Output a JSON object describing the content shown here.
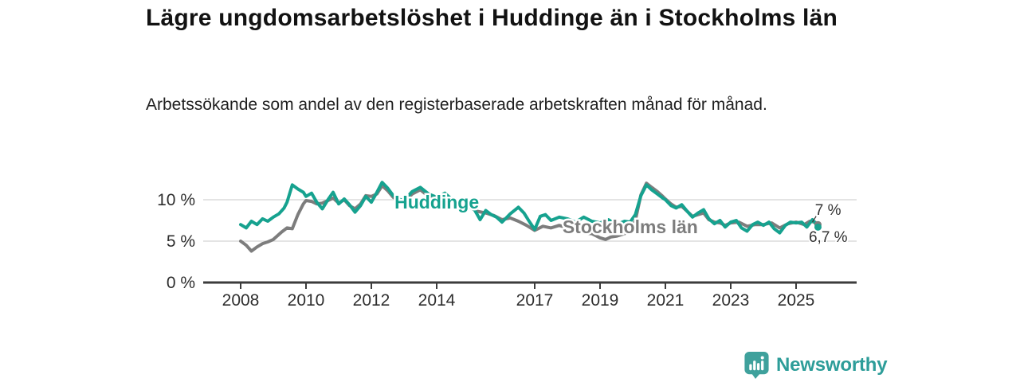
{
  "header": {
    "title": "Lägre ungdomsarbetslöshet i Huddinge än i Stockholms län",
    "subtitle": "Arbetssökande som andel av den registerbaserade arbetskraften månad för månad."
  },
  "chart_data": {
    "type": "line",
    "unit": "%",
    "x_range": [
      2008,
      2025.9
    ],
    "y_range": [
      0,
      13.5
    ],
    "grid": "horizontal",
    "legend_position": "inline-labels",
    "x_ticks": [
      2008,
      2010,
      2012,
      2014,
      2017,
      2019,
      2021,
      2023,
      2025
    ],
    "y_ticks": [
      {
        "value": 0,
        "label": "0 %"
      },
      {
        "value": 5,
        "label": "5 %"
      },
      {
        "value": 10,
        "label": "10 %"
      }
    ],
    "colors": {
      "huddinge": "#16a28f",
      "stockholm": "#7d7d7d",
      "axis": "#3c3c3c",
      "grid": "#dcdcdc",
      "tick_text": "#2e2e2e",
      "annotation_text": "#333333"
    },
    "series": [
      {
        "name": "Stockholms län",
        "color": "#7d7d7d",
        "label": {
          "text": "Stockholms län",
          "t": 2017.85,
          "v": 5.96
        },
        "end_label": "7 %",
        "end_value": 7.0,
        "points": [
          [
            2008.0,
            5.0
          ],
          [
            2008.17,
            4.5
          ],
          [
            2008.33,
            3.8
          ],
          [
            2008.5,
            4.3
          ],
          [
            2008.67,
            4.7
          ],
          [
            2008.83,
            4.9
          ],
          [
            2009.0,
            5.2
          ],
          [
            2009.25,
            6.1
          ],
          [
            2009.42,
            6.6
          ],
          [
            2009.58,
            6.5
          ],
          [
            2009.75,
            8.2
          ],
          [
            2009.92,
            9.5
          ],
          [
            2010.0,
            9.9
          ],
          [
            2010.17,
            9.8
          ],
          [
            2010.33,
            9.5
          ],
          [
            2010.5,
            9.6
          ],
          [
            2010.67,
            9.9
          ],
          [
            2010.83,
            10.2
          ],
          [
            2011.0,
            9.6
          ],
          [
            2011.17,
            10.0
          ],
          [
            2011.33,
            9.3
          ],
          [
            2011.5,
            8.9
          ],
          [
            2011.67,
            9.5
          ],
          [
            2011.83,
            10.5
          ],
          [
            2012.0,
            10.4
          ],
          [
            2012.17,
            10.7
          ],
          [
            2012.33,
            11.7
          ],
          [
            2012.5,
            11.1
          ],
          [
            2012.67,
            10.3
          ],
          [
            2012.83,
            9.9
          ],
          [
            2013.0,
            9.7
          ],
          [
            2013.25,
            10.7
          ],
          [
            2013.5,
            11.2
          ],
          [
            2013.75,
            10.4
          ],
          [
            2014.0,
            10.0
          ],
          [
            2014.25,
            10.4
          ],
          [
            2014.5,
            9.6
          ],
          [
            2014.75,
            9.0
          ],
          [
            2015.0,
            9.1
          ],
          [
            2015.25,
            8.6
          ],
          [
            2015.5,
            8.4
          ],
          [
            2015.75,
            8.1
          ],
          [
            2016.0,
            7.6
          ],
          [
            2016.25,
            7.8
          ],
          [
            2016.5,
            7.4
          ],
          [
            2016.75,
            6.9
          ],
          [
            2017.0,
            6.3
          ],
          [
            2017.25,
            6.8
          ],
          [
            2017.5,
            6.6
          ],
          [
            2017.75,
            6.9
          ],
          [
            2018.0,
            6.6
          ],
          [
            2018.25,
            6.3
          ],
          [
            2018.5,
            6.0
          ],
          [
            2018.75,
            5.9
          ],
          [
            2019.0,
            5.4
          ],
          [
            2019.17,
            5.2
          ],
          [
            2019.33,
            5.5
          ],
          [
            2019.5,
            5.6
          ],
          [
            2019.75,
            5.9
          ],
          [
            2019.92,
            6.2
          ],
          [
            2020.08,
            7.5
          ],
          [
            2020.25,
            10.6
          ],
          [
            2020.42,
            12.0
          ],
          [
            2020.58,
            11.5
          ],
          [
            2020.75,
            11.0
          ],
          [
            2020.92,
            10.4
          ],
          [
            2021.0,
            10.1
          ],
          [
            2021.17,
            9.5
          ],
          [
            2021.33,
            9.1
          ],
          [
            2021.5,
            9.2
          ],
          [
            2021.67,
            8.6
          ],
          [
            2021.83,
            8.0
          ],
          [
            2022.0,
            8.2
          ],
          [
            2022.17,
            8.4
          ],
          [
            2022.33,
            7.6
          ],
          [
            2022.5,
            7.3
          ],
          [
            2022.67,
            7.2
          ],
          [
            2022.83,
            6.9
          ],
          [
            2023.0,
            7.2
          ],
          [
            2023.25,
            7.3
          ],
          [
            2023.5,
            6.8
          ],
          [
            2023.75,
            7.0
          ],
          [
            2024.0,
            7.0
          ],
          [
            2024.25,
            7.2
          ],
          [
            2024.5,
            6.6
          ],
          [
            2024.75,
            7.1
          ],
          [
            2025.0,
            7.3
          ],
          [
            2025.25,
            7.0
          ],
          [
            2025.42,
            7.4
          ],
          [
            2025.58,
            7.3
          ],
          [
            2025.67,
            7.0
          ]
        ]
      },
      {
        "name": "Huddinge",
        "color": "#16a28f",
        "label": {
          "text": "Huddinge",
          "t": 2012.71,
          "v": 8.94
        },
        "end_label": "6,7 %",
        "end_value": 6.7,
        "points": [
          [
            2008.0,
            7.0
          ],
          [
            2008.17,
            6.6
          ],
          [
            2008.33,
            7.4
          ],
          [
            2008.5,
            7.0
          ],
          [
            2008.67,
            7.7
          ],
          [
            2008.83,
            7.4
          ],
          [
            2009.0,
            7.9
          ],
          [
            2009.17,
            8.3
          ],
          [
            2009.33,
            9.0
          ],
          [
            2009.42,
            9.7
          ],
          [
            2009.58,
            11.8
          ],
          [
            2009.75,
            11.3
          ],
          [
            2009.92,
            10.9
          ],
          [
            2010.0,
            10.4
          ],
          [
            2010.17,
            10.8
          ],
          [
            2010.33,
            9.7
          ],
          [
            2010.5,
            8.9
          ],
          [
            2010.67,
            10.0
          ],
          [
            2010.83,
            10.9
          ],
          [
            2011.0,
            9.5
          ],
          [
            2011.17,
            10.1
          ],
          [
            2011.33,
            9.4
          ],
          [
            2011.5,
            8.5
          ],
          [
            2011.67,
            9.3
          ],
          [
            2011.83,
            10.4
          ],
          [
            2012.0,
            9.7
          ],
          [
            2012.17,
            10.9
          ],
          [
            2012.33,
            12.1
          ],
          [
            2012.5,
            11.4
          ],
          [
            2012.67,
            10.5
          ],
          [
            2012.83,
            10.1
          ],
          [
            2013.0,
            9.9
          ],
          [
            2013.25,
            11.0
          ],
          [
            2013.5,
            11.5
          ],
          [
            2013.75,
            10.7
          ],
          [
            2014.0,
            10.3
          ],
          [
            2014.25,
            10.8
          ],
          [
            2014.5,
            9.9
          ],
          [
            2014.75,
            9.3
          ],
          [
            2015.0,
            9.4
          ],
          [
            2015.17,
            8.7
          ],
          [
            2015.33,
            7.6
          ],
          [
            2015.5,
            8.7
          ],
          [
            2015.67,
            8.2
          ],
          [
            2015.83,
            7.9
          ],
          [
            2016.0,
            7.3
          ],
          [
            2016.25,
            8.3
          ],
          [
            2016.5,
            9.1
          ],
          [
            2016.67,
            8.4
          ],
          [
            2016.83,
            7.4
          ],
          [
            2017.0,
            6.4
          ],
          [
            2017.17,
            8.0
          ],
          [
            2017.33,
            8.2
          ],
          [
            2017.5,
            7.5
          ],
          [
            2017.75,
            7.9
          ],
          [
            2018.0,
            7.7
          ],
          [
            2018.25,
            7.3
          ],
          [
            2018.5,
            7.9
          ],
          [
            2018.75,
            7.4
          ],
          [
            2019.0,
            7.2
          ],
          [
            2019.25,
            7.6
          ],
          [
            2019.5,
            7.0
          ],
          [
            2019.75,
            7.4
          ],
          [
            2019.92,
            7.3
          ],
          [
            2020.08,
            8.2
          ],
          [
            2020.25,
            10.5
          ],
          [
            2020.42,
            11.8
          ],
          [
            2020.58,
            11.2
          ],
          [
            2020.75,
            10.7
          ],
          [
            2020.92,
            10.2
          ],
          [
            2021.0,
            10.0
          ],
          [
            2021.17,
            9.3
          ],
          [
            2021.33,
            9.0
          ],
          [
            2021.5,
            9.4
          ],
          [
            2021.67,
            8.6
          ],
          [
            2021.83,
            7.9
          ],
          [
            2022.0,
            8.4
          ],
          [
            2022.17,
            8.8
          ],
          [
            2022.33,
            7.7
          ],
          [
            2022.5,
            7.1
          ],
          [
            2022.67,
            7.5
          ],
          [
            2022.83,
            6.7
          ],
          [
            2023.0,
            7.3
          ],
          [
            2023.17,
            7.5
          ],
          [
            2023.33,
            6.6
          ],
          [
            2023.5,
            6.2
          ],
          [
            2023.67,
            7.0
          ],
          [
            2023.83,
            7.3
          ],
          [
            2024.0,
            6.9
          ],
          [
            2024.17,
            7.3
          ],
          [
            2024.33,
            6.5
          ],
          [
            2024.5,
            6.0
          ],
          [
            2024.67,
            6.9
          ],
          [
            2024.83,
            7.3
          ],
          [
            2025.0,
            7.2
          ],
          [
            2025.17,
            7.3
          ],
          [
            2025.33,
            6.7
          ],
          [
            2025.5,
            7.6
          ],
          [
            2025.58,
            7.2
          ],
          [
            2025.67,
            6.7
          ]
        ]
      }
    ],
    "annotations": [
      {
        "text": "7 %",
        "t": 2025.58,
        "v": 8.17
      },
      {
        "text": "6,7 %",
        "t": 2025.39,
        "v": 4.9
      }
    ],
    "leader_line": {
      "from": [
        2025.5,
        7.3
      ],
      "to": [
        2025.62,
        8.05
      ]
    }
  },
  "footer": {
    "brand": "Newsworthy"
  }
}
